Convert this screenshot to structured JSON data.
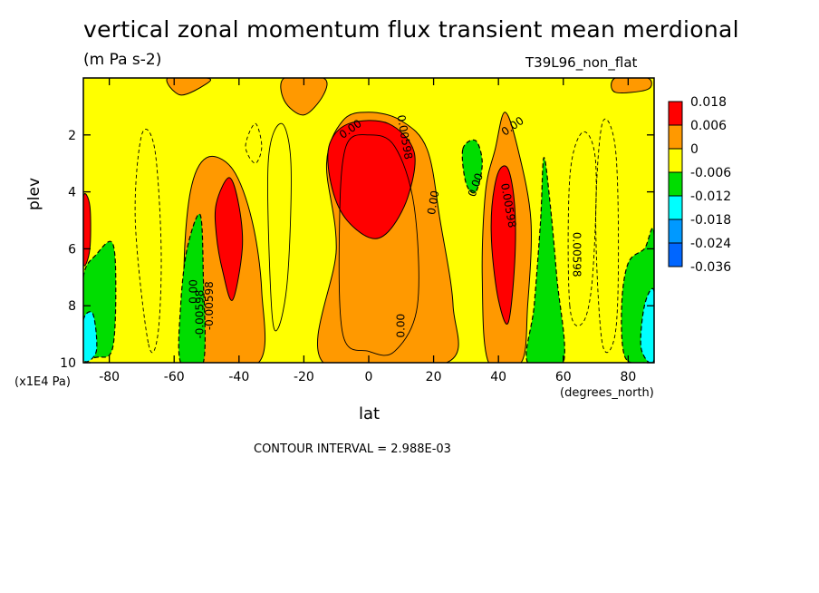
{
  "title": "vertical zonal momentum flux transient mean merdional",
  "units": "(m Pa s-2)",
  "run_label": "T39L96_non_flat",
  "footer": "CONTOUR INTERVAL = 2.988E-03",
  "chart_data": {
    "type": "heatmap",
    "xlabel": "lat",
    "x_units": "(degrees_north)",
    "ylabel": "plev",
    "y_units": "(x1E4 Pa)",
    "xlim": [
      -88,
      88
    ],
    "ylim": [
      10,
      0
    ],
    "x_ticks": [
      "-80",
      "-60",
      "-40",
      "-20",
      "0",
      "20",
      "40",
      "60",
      "80"
    ],
    "x_tick_values": [
      -80,
      -60,
      -40,
      -20,
      0,
      20,
      40,
      60,
      80
    ],
    "y_ticks": [
      "2",
      "4",
      "6",
      "8",
      "10"
    ],
    "y_tick_values": [
      2,
      4,
      6,
      8,
      10
    ],
    "colorbar": {
      "labels": [
        "0.018",
        "0.006",
        "0",
        "-0.006",
        "-0.012",
        "-0.018",
        "-0.024",
        "-0.036"
      ],
      "colors": [
        "#ff0000",
        "#ff9900",
        "#ffff00",
        "#00dd00",
        "#00ffff",
        "#0099ff",
        "#0066ff"
      ]
    },
    "contour_labels": [
      "0.00",
      "0.00",
      "0.00",
      "0.00",
      "0.00",
      "0.00598",
      "0.00598",
      "0.00598",
      "-0.00598",
      "-0.00598",
      "0.00"
    ],
    "regions": [
      {
        "level": "0.006",
        "color": "#ff9900",
        "outline": [
          [
            -14,
            10
          ],
          [
            -10,
            6
          ],
          [
            -13,
            3
          ],
          [
            -8,
            1.5
          ],
          [
            0,
            1.2
          ],
          [
            10,
            1.5
          ],
          [
            18,
            2.5
          ],
          [
            22,
            5
          ],
          [
            26,
            8
          ],
          [
            24,
            10
          ]
        ]
      },
      {
        "level": "0.006",
        "color": "#ff9900",
        "outline": [
          [
            -55,
            10
          ],
          [
            -57,
            7
          ],
          [
            -55,
            4
          ],
          [
            -50,
            2.8
          ],
          [
            -42,
            3.2
          ],
          [
            -36,
            5
          ],
          [
            -33,
            7.5
          ],
          [
            -34,
            10
          ]
        ]
      },
      {
        "level": "0.006",
        "color": "#ff9900",
        "outline": [
          [
            37,
            10
          ],
          [
            35,
            7
          ],
          [
            36,
            4
          ],
          [
            39,
            2.5
          ],
          [
            42,
            1.2
          ],
          [
            46,
            2.5
          ],
          [
            50,
            5
          ],
          [
            49,
            8
          ],
          [
            47,
            10
          ]
        ]
      },
      {
        "level": "0.006",
        "color": "#ff9900",
        "outline": [
          [
            -62,
            0
          ],
          [
            -58,
            0.6
          ],
          [
            -50,
            0.2
          ],
          [
            -50,
            0
          ]
        ]
      },
      {
        "level": "0.006",
        "color": "#ff9900",
        "outline": [
          [
            -26,
            0
          ],
          [
            -26,
            0.8
          ],
          [
            -20,
            1.3
          ],
          [
            -14,
            0.6
          ],
          [
            -14,
            0
          ]
        ]
      },
      {
        "level": "0.006",
        "color": "#ff9900",
        "outline": [
          [
            76,
            0
          ],
          [
            76,
            0.5
          ],
          [
            86,
            0.4
          ],
          [
            86,
            0
          ]
        ]
      },
      {
        "level": "0.018",
        "color": "#ff0000",
        "outline": [
          [
            -12,
            2.3
          ],
          [
            -6,
            1.6
          ],
          [
            6,
            1.6
          ],
          [
            14,
            2.6
          ],
          [
            12,
            4.2
          ],
          [
            6,
            5.4
          ],
          [
            0,
            5.6
          ],
          [
            -8,
            4.8
          ],
          [
            -12,
            3.5
          ]
        ]
      },
      {
        "level": "0.018",
        "color": "#ff0000",
        "outline": [
          [
            -47,
            4.4
          ],
          [
            -43,
            3.5
          ],
          [
            -40,
            4.5
          ],
          [
            -39,
            6
          ],
          [
            -42,
            7.8
          ],
          [
            -45,
            6.8
          ],
          [
            -47,
            5.5
          ]
        ]
      },
      {
        "level": "0.018",
        "color": "#ff0000",
        "outline": [
          [
            38,
            4.5
          ],
          [
            40,
            3.3
          ],
          [
            43,
            3.2
          ],
          [
            45,
            4.5
          ],
          [
            45,
            6.5
          ],
          [
            43,
            8.6
          ],
          [
            40,
            7.8
          ],
          [
            38,
            6
          ]
        ]
      },
      {
        "level": "0.018",
        "color": "#ff0000",
        "outline": [
          [
            -88,
            4.2
          ],
          [
            -86,
            4.5
          ],
          [
            -86,
            6
          ],
          [
            -88,
            6.5
          ]
        ]
      },
      {
        "level": "-0.006",
        "color": "#00dd00",
        "outline": [
          [
            -88,
            7
          ],
          [
            -84,
            6.2
          ],
          [
            -79,
            5.8
          ],
          [
            -78,
            7.5
          ],
          [
            -79,
            9.5
          ],
          [
            -83,
            9.8
          ],
          [
            -88,
            9.5
          ]
        ]
      },
      {
        "level": "-0.006",
        "color": "#00dd00",
        "outline": [
          [
            -58,
            10
          ],
          [
            -58,
            8
          ],
          [
            -56,
            6
          ],
          [
            -52,
            4.8
          ],
          [
            -51,
            7
          ],
          [
            -51,
            10
          ]
        ]
      },
      {
        "level": "-0.006",
        "color": "#00dd00",
        "outline": [
          [
            49,
            10
          ],
          [
            51,
            8
          ],
          [
            53,
            5
          ],
          [
            54,
            2.8
          ],
          [
            56,
            4.5
          ],
          [
            58,
            7
          ],
          [
            60,
            10
          ]
        ]
      },
      {
        "level": "-0.006",
        "color": "#00dd00",
        "outline": [
          [
            88,
            5.5
          ],
          [
            85,
            6
          ],
          [
            80,
            6.5
          ],
          [
            78,
            8
          ],
          [
            79,
            9.8
          ],
          [
            85,
            10
          ],
          [
            88,
            10
          ]
        ]
      },
      {
        "level": "-0.006",
        "color": "#00dd00",
        "outline": [
          [
            29,
            2.5
          ],
          [
            33,
            2.2
          ],
          [
            35,
            3
          ],
          [
            33,
            4
          ],
          [
            30,
            3.7
          ]
        ]
      },
      {
        "level": "-0.012",
        "color": "#00ffff",
        "outline": [
          [
            -88,
            8.5
          ],
          [
            -85,
            8.3
          ],
          [
            -84,
            9.6
          ],
          [
            -88,
            9.9
          ]
        ]
      },
      {
        "level": "-0.012",
        "color": "#00ffff",
        "outline": [
          [
            88,
            7.5
          ],
          [
            85,
            8
          ],
          [
            84,
            9.5
          ],
          [
            88,
            9.9
          ]
        ]
      }
    ]
  }
}
